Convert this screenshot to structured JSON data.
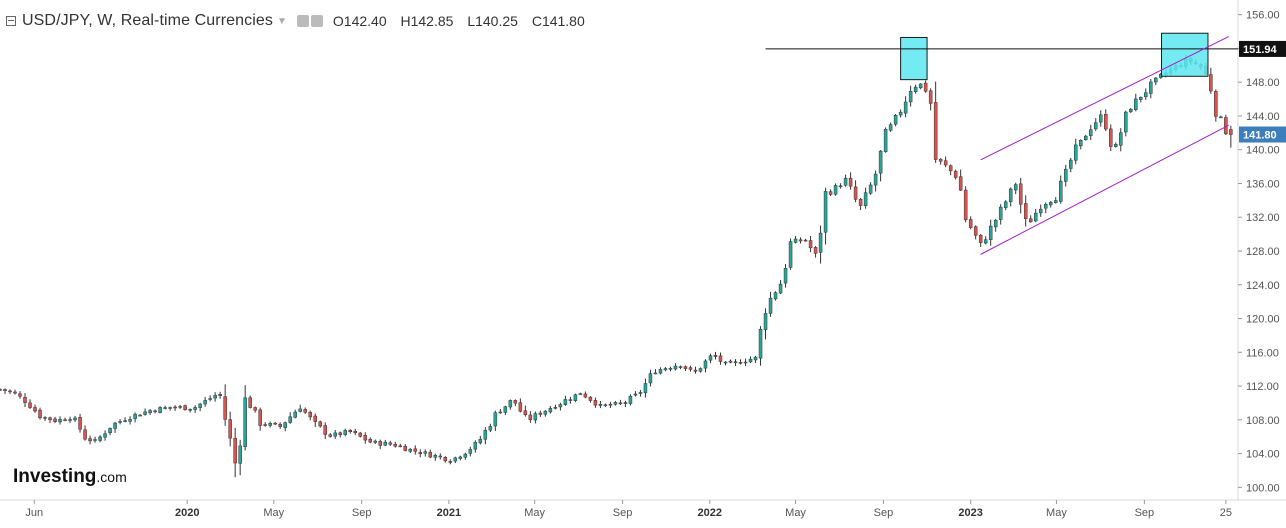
{
  "header": {
    "symbol": "USD/JPY, W, Real-time Currencies",
    "open": "O142.40",
    "high": "H142.85",
    "low": "L140.25",
    "close": "C141.80"
  },
  "logo": {
    "brand": "Investing",
    "suffix": ".com"
  },
  "colors": {
    "up": "#26a69a",
    "down": "#d9534f",
    "wick": "#333333",
    "channel": "#a020c8",
    "resistance": "#111111",
    "box_fill": "#5ce8f0",
    "box_stroke": "#1a1a1a",
    "last_price_bg": "#3d7fbd",
    "resistance_label_bg": "#111111"
  },
  "chart_data": {
    "type": "candlestick",
    "title": "USD/JPY, W, Real-time Currencies",
    "ohlc_last": {
      "open": 142.4,
      "high": 142.85,
      "low": 140.25,
      "close": 141.8
    },
    "ylim": [
      98.5,
      157.5
    ],
    "y_ticks": [
      "100.00",
      "104.00",
      "108.00",
      "112.00",
      "116.00",
      "120.00",
      "124.00",
      "128.00",
      "132.00",
      "136.00",
      "140.00",
      "144.00",
      "148.00",
      "152.00",
      "156.00"
    ],
    "x_ticks": [
      {
        "label": "Jun",
        "date": "2019-06-01",
        "bold": false
      },
      {
        "label": "2020",
        "date": "2020-01-01",
        "bold": true
      },
      {
        "label": "May",
        "date": "2020-05-01",
        "bold": false
      },
      {
        "label": "Sep",
        "date": "2020-09-01",
        "bold": false
      },
      {
        "label": "2021",
        "date": "2021-01-01",
        "bold": true
      },
      {
        "label": "May",
        "date": "2021-05-01",
        "bold": false
      },
      {
        "label": "Sep",
        "date": "2021-09-01",
        "bold": false
      },
      {
        "label": "2022",
        "date": "2022-01-01",
        "bold": true
      },
      {
        "label": "May",
        "date": "2022-05-01",
        "bold": false
      },
      {
        "label": "Sep",
        "date": "2022-09-01",
        "bold": false
      },
      {
        "label": "2023",
        "date": "2023-01-01",
        "bold": true
      },
      {
        "label": "May",
        "date": "2023-05-01",
        "bold": false
      },
      {
        "label": "Sep",
        "date": "2023-09-01",
        "bold": false
      },
      {
        "label": "25",
        "date": "2023-12-24",
        "bold": false
      }
    ],
    "x_range": [
      "2019-04-14",
      "2024-01-10"
    ],
    "close_path": [
      [
        "2019-04-14",
        111.6
      ],
      [
        "2019-05-01",
        111.3
      ],
      [
        "2019-05-20",
        110.2
      ],
      [
        "2019-06-10",
        108.4
      ],
      [
        "2019-07-01",
        107.9
      ],
      [
        "2019-07-25",
        108.4
      ],
      [
        "2019-08-12",
        105.8
      ],
      [
        "2019-08-26",
        105.4
      ],
      [
        "2019-09-16",
        107.3
      ],
      [
        "2019-10-10",
        108.3
      ],
      [
        "2019-11-10",
        109.1
      ],
      [
        "2019-12-10",
        109.5
      ],
      [
        "2020-01-10",
        109.4
      ],
      [
        "2020-02-15",
        111.2
      ],
      [
        "2020-03-09",
        102.5
      ],
      [
        "2020-03-23",
        110.6
      ],
      [
        "2020-04-13",
        107.6
      ],
      [
        "2020-05-10",
        107.2
      ],
      [
        "2020-06-07",
        109.6
      ],
      [
        "2020-06-28",
        107.4
      ],
      [
        "2020-07-20",
        106.1
      ],
      [
        "2020-08-15",
        106.6
      ],
      [
        "2020-09-15",
        105.3
      ],
      [
        "2020-10-15",
        105.1
      ],
      [
        "2020-11-10",
        104.4
      ],
      [
        "2020-12-10",
        103.8
      ],
      [
        "2021-01-05",
        103.2
      ],
      [
        "2021-02-10",
        105.2
      ],
      [
        "2021-03-10",
        108.9
      ],
      [
        "2021-04-01",
        110.4
      ],
      [
        "2021-04-20",
        107.9
      ],
      [
        "2021-05-15",
        109.1
      ],
      [
        "2021-06-15",
        110.4
      ],
      [
        "2021-07-05",
        111.2
      ],
      [
        "2021-08-01",
        109.6
      ],
      [
        "2021-09-01",
        109.9
      ],
      [
        "2021-09-25",
        111.2
      ],
      [
        "2021-10-15",
        113.8
      ],
      [
        "2021-11-20",
        114.6
      ],
      [
        "2021-12-10",
        113.5
      ],
      [
        "2022-01-05",
        115.7
      ],
      [
        "2022-01-25",
        114.4
      ],
      [
        "2022-02-20",
        115.1
      ],
      [
        "2022-03-06",
        115.3
      ],
      [
        "2022-03-20",
        121.4
      ],
      [
        "2022-04-10",
        124.2
      ],
      [
        "2022-04-25",
        129.1
      ],
      [
        "2022-05-15",
        129.3
      ],
      [
        "2022-05-30",
        127.3
      ],
      [
        "2022-06-12",
        134.5
      ],
      [
        "2022-07-10",
        136.4
      ],
      [
        "2022-07-30",
        133.0
      ],
      [
        "2022-08-20",
        136.8
      ],
      [
        "2022-09-05",
        142.0
      ],
      [
        "2022-09-25",
        144.6
      ],
      [
        "2022-10-10",
        147.5
      ],
      [
        "2022-10-22",
        147.8
      ],
      [
        "2022-11-05",
        146.6
      ],
      [
        "2022-11-12",
        139.0
      ],
      [
        "2022-11-25",
        138.2
      ],
      [
        "2022-12-15",
        136.6
      ],
      [
        "2022-12-25",
        131.9
      ],
      [
        "2023-01-15",
        128.6
      ],
      [
        "2023-02-01",
        131.1
      ],
      [
        "2023-03-05",
        136.0
      ],
      [
        "2023-03-20",
        130.8
      ],
      [
        "2023-04-10",
        133.6
      ],
      [
        "2023-05-01",
        134.4
      ],
      [
        "2023-05-25",
        139.6
      ],
      [
        "2023-06-20",
        143.0
      ],
      [
        "2023-07-05",
        144.1
      ],
      [
        "2023-07-20",
        139.7
      ],
      [
        "2023-08-10",
        144.8
      ],
      [
        "2023-08-30",
        146.6
      ],
      [
        "2023-09-20",
        148.5
      ],
      [
        "2023-10-10",
        149.6
      ],
      [
        "2023-11-01",
        150.6
      ],
      [
        "2023-11-15",
        150.1
      ],
      [
        "2023-11-22",
        149.6
      ],
      [
        "2023-12-01",
        148.0
      ],
      [
        "2023-12-10",
        144.8
      ],
      [
        "2023-12-24",
        142.4
      ],
      [
        "2024-01-03",
        141.8
      ]
    ],
    "wick_spikes": [
      {
        "date": "2020-03-09",
        "low": 101.2
      },
      {
        "date": "2020-02-23",
        "high": 112.2
      }
    ],
    "resistance": {
      "value": 151.94,
      "label": "151.94",
      "from_date": "2022-03-20"
    },
    "last_price": {
      "value": 141.8,
      "label": "141.80"
    },
    "highlight_boxes": [
      {
        "from_date": "2022-09-25",
        "to_date": "2022-11-01",
        "low": 148.3,
        "high": 153.3
      },
      {
        "from_date": "2023-09-25",
        "to_date": "2023-11-29",
        "low": 148.7,
        "high": 153.8
      }
    ],
    "channel": {
      "upper": [
        [
          "2023-01-15",
          138.8
        ],
        [
          "2023-12-28",
          153.4
        ]
      ],
      "lower": [
        [
          "2023-01-15",
          127.6
        ],
        [
          "2023-12-28",
          142.9
        ]
      ]
    }
  }
}
